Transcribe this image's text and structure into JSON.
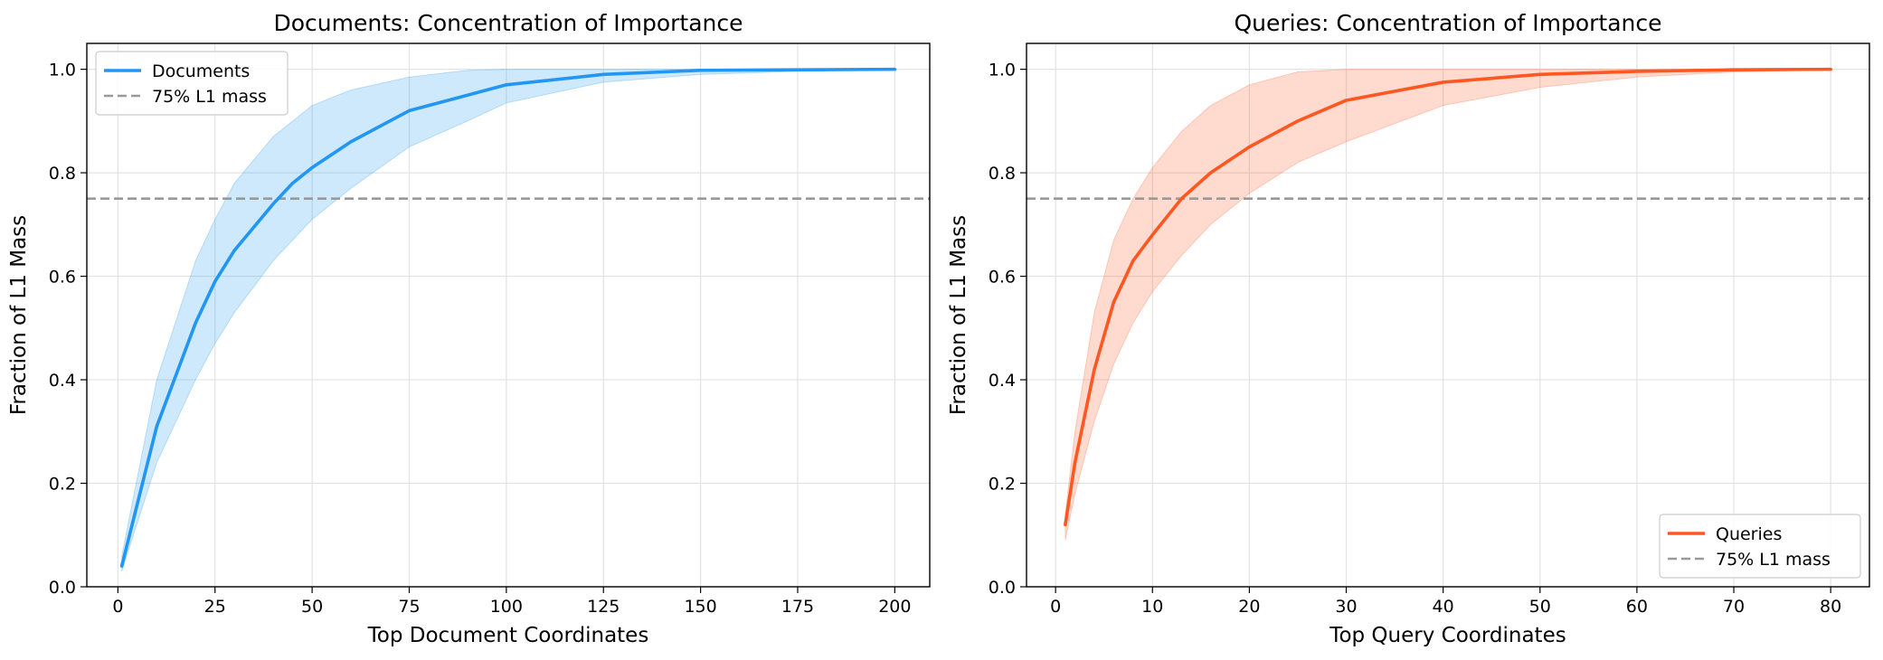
{
  "chart_data": [
    {
      "type": "line",
      "title": "Documents: Concentration of Importance",
      "xlabel": "Top Document Coordinates",
      "ylabel": "Fraction of L1 Mass",
      "xlim": [
        -8,
        209
      ],
      "ylim": [
        0.0,
        1.05
      ],
      "xticks": [
        0,
        25,
        50,
        75,
        100,
        125,
        150,
        175,
        200
      ],
      "yticks": [
        0.0,
        0.2,
        0.4,
        0.6,
        0.8,
        1.0
      ],
      "xtick_labels": [
        "0",
        "25",
        "50",
        "75",
        "100",
        "125",
        "150",
        "175",
        "200"
      ],
      "ytick_labels": [
        "0.0",
        "0.2",
        "0.4",
        "0.6",
        "0.8",
        "1.0"
      ],
      "grid": true,
      "legend_position": "top-left",
      "reference_line": {
        "name": "75% L1 mass",
        "y": 0.75,
        "color": "#999999",
        "style": "dashed"
      },
      "series": [
        {
          "name": "Documents",
          "color": "#2196f3",
          "x": [
            1,
            10,
            20,
            25,
            30,
            40,
            45,
            50,
            60,
            75,
            90,
            100,
            125,
            150,
            175,
            200
          ],
          "y": [
            0.04,
            0.31,
            0.51,
            0.59,
            0.65,
            0.74,
            0.78,
            0.81,
            0.86,
            0.92,
            0.95,
            0.97,
            0.99,
            0.998,
            0.999,
            1.0
          ],
          "band_upper": [
            0.06,
            0.4,
            0.63,
            0.71,
            0.78,
            0.87,
            0.9,
            0.93,
            0.96,
            0.985,
            0.998,
            1.0,
            1.0,
            1.0,
            1.0,
            1.0
          ],
          "band_lower": [
            0.03,
            0.24,
            0.4,
            0.47,
            0.53,
            0.63,
            0.67,
            0.71,
            0.77,
            0.85,
            0.9,
            0.935,
            0.975,
            0.99,
            0.996,
            0.999
          ]
        }
      ]
    },
    {
      "type": "line",
      "title": "Queries: Concentration of Importance",
      "xlabel": "Top Query Coordinates",
      "ylabel": "Fraction of L1 Mass",
      "xlim": [
        -3,
        84
      ],
      "ylim": [
        0.0,
        1.05
      ],
      "xticks": [
        0,
        10,
        20,
        30,
        40,
        50,
        60,
        70,
        80
      ],
      "yticks": [
        0.0,
        0.2,
        0.4,
        0.6,
        0.8,
        1.0
      ],
      "xtick_labels": [
        "0",
        "10",
        "20",
        "30",
        "40",
        "50",
        "60",
        "70",
        "80"
      ],
      "ytick_labels": [
        "0.0",
        "0.2",
        "0.4",
        "0.6",
        "0.8",
        "1.0"
      ],
      "grid": true,
      "legend_position": "bottom-right",
      "reference_line": {
        "name": "75% L1 mass",
        "y": 0.75,
        "color": "#999999",
        "style": "dashed"
      },
      "series": [
        {
          "name": "Queries",
          "color": "#ff5722",
          "x": [
            1,
            2,
            4,
            6,
            8,
            10,
            13,
            16,
            20,
            25,
            30,
            40,
            50,
            60,
            70,
            80
          ],
          "y": [
            0.12,
            0.24,
            0.42,
            0.55,
            0.63,
            0.68,
            0.75,
            0.8,
            0.85,
            0.9,
            0.94,
            0.975,
            0.99,
            0.996,
            0.999,
            1.0
          ],
          "band_upper": [
            0.14,
            0.3,
            0.53,
            0.67,
            0.75,
            0.81,
            0.88,
            0.93,
            0.97,
            0.995,
            1.0,
            1.0,
            1.0,
            1.0,
            1.0,
            1.0
          ],
          "band_lower": [
            0.09,
            0.18,
            0.32,
            0.43,
            0.51,
            0.57,
            0.64,
            0.7,
            0.76,
            0.82,
            0.86,
            0.93,
            0.965,
            0.985,
            0.995,
            0.999
          ]
        }
      ]
    }
  ]
}
